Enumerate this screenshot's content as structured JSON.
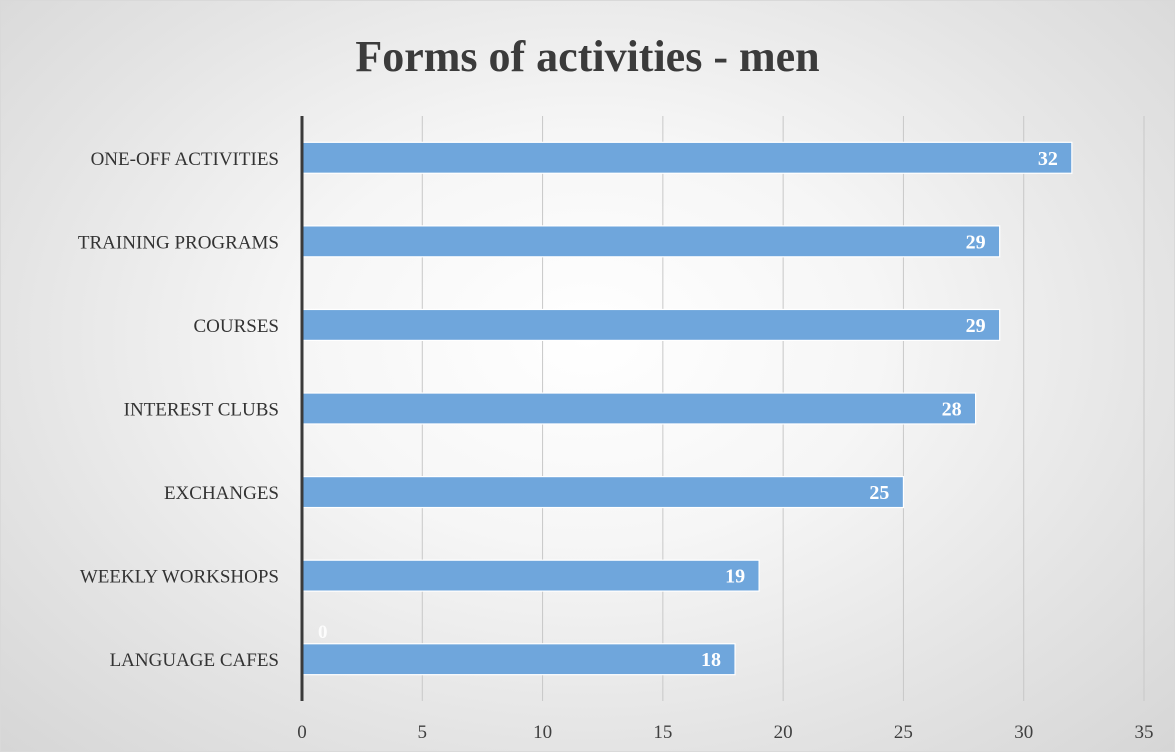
{
  "chart_data": {
    "type": "bar",
    "orientation": "horizontal",
    "title": "Forms of activities - men",
    "xlabel": "",
    "ylabel": "",
    "categories": [
      "ONE-OFF ACTIVITIES",
      "TRAINING PROGRAMS",
      "COURSES",
      "INTEREST CLUBS",
      "EXCHANGES",
      "WEEKLY WORKSHOPS",
      "LANGUAGE CAFES"
    ],
    "values": [
      32,
      29,
      29,
      28,
      25,
      19,
      18
    ],
    "xlim": [
      0,
      35
    ],
    "xticks": [
      "0",
      "5",
      "10",
      "15",
      "20",
      "25",
      "30",
      "35"
    ],
    "grid": "vertical",
    "legend": "none",
    "annotations": [
      "0"
    ],
    "colors": {
      "bar": "#6fa6dc",
      "bar_edge": "#ffffff",
      "grid": "#c8c8c8",
      "axis": "#3a3a3a"
    }
  }
}
